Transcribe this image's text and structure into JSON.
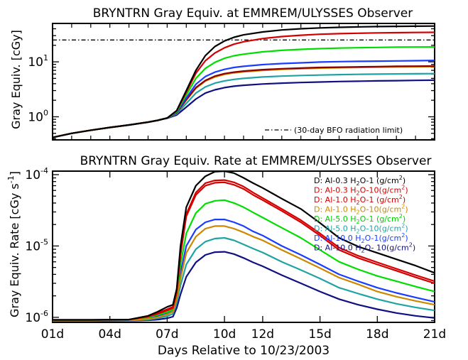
{
  "chart_data": [
    {
      "type": "line",
      "title": "BRYNTRN Gray Equiv. at EMMREM/ULYSSES Observer",
      "ylabel": "Gray Equiv. [cGy]",
      "yscale": "log",
      "ylim": [
        0.38,
        50
      ],
      "xlim": [
        1,
        21
      ],
      "yticks": [
        {
          "value": 1,
          "base": "10",
          "exp": "0"
        },
        {
          "value": 10,
          "base": "10",
          "exp": "1"
        }
      ],
      "reference_line": {
        "y": 25,
        "label": "(30-day BFO radiation limit)",
        "style": "dash-dot"
      },
      "x": [
        1,
        2,
        3,
        4,
        5,
        6,
        6.5,
        7,
        7.5,
        8,
        8.5,
        9,
        9.5,
        10,
        10.5,
        11,
        12,
        13,
        14,
        15,
        16,
        17,
        18,
        19,
        20,
        21
      ],
      "series": [
        {
          "color": "#000000",
          "values": [
            0.42,
            0.5,
            0.57,
            0.64,
            0.71,
            0.8,
            0.86,
            0.95,
            1.3,
            3.0,
            7.0,
            13.0,
            19.0,
            24.0,
            28.0,
            31.0,
            35.0,
            38.0,
            40.0,
            41.5,
            42.5,
            43.2,
            43.8,
            44.2,
            44.5,
            44.8
          ]
        },
        {
          "color": "#d40000",
          "values": [
            0.42,
            0.5,
            0.57,
            0.64,
            0.71,
            0.8,
            0.86,
            0.95,
            1.28,
            2.8,
            6.2,
            10.5,
            14.5,
            18.0,
            21.0,
            23.2,
            26.5,
            28.8,
            30.5,
            31.8,
            32.6,
            33.2,
            33.7,
            34.0,
            34.3,
            34.5
          ]
        },
        {
          "color": "#00dd00",
          "values": [
            0.42,
            0.5,
            0.57,
            0.64,
            0.71,
            0.8,
            0.86,
            0.95,
            1.24,
            2.5,
            5.0,
            7.6,
            9.8,
            11.6,
            12.9,
            13.8,
            15.2,
            16.2,
            16.9,
            17.4,
            17.8,
            18.1,
            18.3,
            18.5,
            18.6,
            18.7
          ]
        },
        {
          "color": "#1a3cff",
          "values": [
            0.42,
            0.5,
            0.57,
            0.64,
            0.71,
            0.8,
            0.86,
            0.95,
            1.2,
            2.2,
            3.9,
            5.4,
            6.5,
            7.3,
            7.9,
            8.3,
            8.9,
            9.3,
            9.6,
            9.9,
            10.1,
            10.2,
            10.3,
            10.4,
            10.5,
            10.6
          ]
        },
        {
          "color": "#8b0000",
          "values": [
            0.42,
            0.5,
            0.57,
            0.64,
            0.71,
            0.8,
            0.86,
            0.95,
            1.18,
            2.05,
            3.4,
            4.6,
            5.5,
            6.1,
            6.5,
            6.8,
            7.2,
            7.5,
            7.7,
            7.9,
            8.0,
            8.1,
            8.2,
            8.3,
            8.35,
            8.4
          ]
        },
        {
          "color": "#cc8800",
          "values": [
            0.42,
            0.5,
            0.57,
            0.64,
            0.71,
            0.8,
            0.86,
            0.95,
            1.17,
            2.0,
            3.3,
            4.45,
            5.3,
            5.9,
            6.3,
            6.6,
            7.0,
            7.3,
            7.5,
            7.7,
            7.8,
            7.9,
            8.0,
            8.1,
            8.15,
            8.2
          ]
        },
        {
          "color": "#1fa3a3",
          "values": [
            0.42,
            0.5,
            0.57,
            0.64,
            0.71,
            0.8,
            0.86,
            0.95,
            1.13,
            1.75,
            2.7,
            3.5,
            4.1,
            4.5,
            4.8,
            5.0,
            5.3,
            5.5,
            5.65,
            5.75,
            5.85,
            5.92,
            5.97,
            6.02,
            6.06,
            6.1
          ]
        },
        {
          "color": "#101080",
          "values": [
            0.42,
            0.5,
            0.57,
            0.64,
            0.71,
            0.8,
            0.86,
            0.94,
            1.08,
            1.5,
            2.1,
            2.7,
            3.1,
            3.4,
            3.6,
            3.75,
            3.95,
            4.1,
            4.2,
            4.3,
            4.38,
            4.44,
            4.5,
            4.55,
            4.6,
            4.64
          ]
        }
      ]
    },
    {
      "type": "line",
      "title": "BRYNTRN Gray Equiv. Rate at EMMREM/ULYSSES Observer",
      "ylabel": "Gray Equiv. Rate [cGy s",
      "ylabel_sup": "-1",
      "ylabel_end": "]",
      "xlabel": "Days Relative to 10/23/2003",
      "yscale": "log",
      "ylim": [
        8.5e-07,
        0.000112
      ],
      "xlim": [
        1,
        21
      ],
      "xticks": [
        {
          "value": 1,
          "label": "01d"
        },
        {
          "value": 4,
          "label": "04d"
        },
        {
          "value": 7,
          "label": "07d"
        },
        {
          "value": 10,
          "label": "10d"
        },
        {
          "value": 12,
          "label": "12d"
        },
        {
          "value": 15,
          "label": "15d"
        },
        {
          "value": 18,
          "label": "18d"
        },
        {
          "value": 21,
          "label": "21d"
        }
      ],
      "yticks": [
        {
          "value": 1e-06,
          "base": "10",
          "exp": "-6"
        },
        {
          "value": 1e-05,
          "base": "10",
          "exp": "-5"
        },
        {
          "value": 0.0001,
          "base": "10",
          "exp": "-4"
        }
      ],
      "legend_placement": "top-right",
      "x": [
        1,
        3,
        5,
        6,
        6.5,
        7,
        7.3,
        7.5,
        7.7,
        8,
        8.5,
        9,
        9.5,
        10,
        10.5,
        11,
        11.5,
        12,
        13,
        14,
        15,
        16,
        17,
        18,
        19,
        20,
        21
      ],
      "series": [
        {
          "name": "D: Al-0.3 H2O-1 (g/cm2)",
          "color": "#000000",
          "values": [
            9.2e-07,
            9.2e-07,
            9.3e-07,
            1.05e-06,
            1.2e-06,
            1.4e-06,
            1.5e-06,
            2.5e-06,
            1e-05,
            3.5e-05,
            7e-05,
            9.5e-05,
            0.00011,
            0.000112,
            0.000105,
            9e-05,
            7.6e-05,
            6.5e-05,
            4.6e-05,
            3.3e-05,
            2.1e-05,
            1.3e-05,
            9.8e-06,
            8e-06,
            6.5e-06,
            5.3e-06,
            4.2e-06
          ]
        },
        {
          "name": "D: Al-0.3 H2O-10(g/cm2)",
          "color": "#d40000",
          "values": [
            9.2e-07,
            9.2e-07,
            9.3e-07,
            1.03e-06,
            1.15e-06,
            1.3e-06,
            1.4e-06,
            2.3e-06,
            8e-06,
            2.8e-05,
            5.6e-05,
            7.6e-05,
            8.3e-05,
            8.4e-05,
            7.8e-05,
            6.8e-05,
            5.6e-05,
            4.7e-05,
            3.3e-05,
            2.3e-05,
            1.5e-05,
            9.5e-06,
            7.3e-06,
            5.9e-06,
            4.8e-06,
            3.9e-06,
            3.2e-06
          ]
        },
        {
          "name": "D: Al-1.0 H2O-1 (g/cm2)",
          "color": "#d40000",
          "values": [
            9.2e-07,
            9.2e-07,
            9.3e-07,
            1.02e-06,
            1.12e-06,
            1.25e-06,
            1.35e-06,
            2.2e-06,
            7.5e-06,
            2.6e-05,
            5.2e-05,
            7e-05,
            7.7e-05,
            7.8e-05,
            7.2e-05,
            6.3e-05,
            5.2e-05,
            4.4e-05,
            3.1e-05,
            2.15e-05,
            1.4e-05,
            8.8e-06,
            6.8e-06,
            5.5e-06,
            4.5e-06,
            3.65e-06,
            3e-06
          ]
        },
        {
          "name": "D: Al-1.0 H2O-10(g/cm2)",
          "color": "#cc8800",
          "values": [
            9e-07,
            9e-07,
            9.1e-07,
            9.5e-07,
            1e-06,
            1.1e-06,
            1.2e-06,
            1.8e-06,
            3.5e-06,
            8e-06,
            1.35e-05,
            1.75e-05,
            1.9e-05,
            1.9e-05,
            1.75e-05,
            1.55e-05,
            1.35e-05,
            1.2e-05,
            8.8e-06,
            6.6e-06,
            4.9e-06,
            3.6e-06,
            2.9e-06,
            2.3e-06,
            1.95e-06,
            1.7e-06,
            1.5e-06
          ]
        },
        {
          "name": "D: Al-5.0 H2O-1 (g/cm2)",
          "color": "#00dd00",
          "values": [
            9.1e-07,
            9.1e-07,
            9.2e-07,
            1e-06,
            1.08e-06,
            1.18e-06,
            1.28e-06,
            2e-06,
            5.5e-06,
            1.5e-05,
            2.9e-05,
            3.9e-05,
            4.3e-05,
            4.4e-05,
            4e-05,
            3.5e-05,
            2.95e-05,
            2.5e-05,
            1.8e-05,
            1.3e-05,
            8.8e-06,
            6e-06,
            4.7e-06,
            3.8e-06,
            3.2e-06,
            2.7e-06,
            2.3e-06
          ]
        },
        {
          "name": "D: Al-5.0 H2O-10(g/cm2)",
          "color": "#1fa3a3",
          "values": [
            9e-07,
            9e-07,
            9.05e-07,
            9.3e-07,
            9.7e-07,
            1.04e-06,
            1.12e-06,
            1.6e-06,
            2.8e-06,
            5.5e-06,
            9e-06,
            1.15e-05,
            1.27e-05,
            1.3e-05,
            1.2e-05,
            1.05e-05,
            9.2e-06,
            8.1e-06,
            6e-06,
            4.6e-06,
            3.5e-06,
            2.6e-06,
            2.15e-06,
            1.8e-06,
            1.55e-06,
            1.38e-06,
            1.25e-06
          ]
        },
        {
          "name": "D: Al-10.0 H2O-1(g/cm2)",
          "color": "#1a3cff",
          "values": [
            9.05e-07,
            9.05e-07,
            9.1e-07,
            9.8e-07,
            1.05e-06,
            1.14e-06,
            1.22e-06,
            1.85e-06,
            4.2e-06,
            1e-05,
            1.7e-05,
            2.15e-05,
            2.35e-05,
            2.35e-05,
            2.15e-05,
            1.9e-05,
            1.6e-05,
            1.4e-05,
            1e-05,
            7.5e-06,
            5.5e-06,
            4e-06,
            3.2e-06,
            2.6e-06,
            2.2e-06,
            1.9e-06,
            1.65e-06
          ]
        },
        {
          "name": "D: Al-10.0 H2O- 10(g/cm2)",
          "color": "#101080",
          "values": [
            8.9e-07,
            8.9e-07,
            8.95e-07,
            9.1e-07,
            9.3e-07,
            9.7e-07,
            1.02e-06,
            1.35e-06,
            2.1e-06,
            3.7e-06,
            5.9e-06,
            7.5e-06,
            8.2e-06,
            8.3e-06,
            7.7e-06,
            6.8e-06,
            5.9e-06,
            5.2e-06,
            3.9e-06,
            3e-06,
            2.3e-06,
            1.8e-06,
            1.5e-06,
            1.3e-06,
            1.15e-06,
            1.05e-06,
            9.8e-07
          ]
        }
      ],
      "legend": [
        {
          "pre": "D: Al-0.3 H",
          "sub": "2",
          "mid": "O-1 (g/cm",
          "sup": "2",
          "post": ")",
          "color": "#000000"
        },
        {
          "pre": "D: Al-0.3 H",
          "sub": "2",
          "mid": "O-10(g/cm",
          "sup": "2",
          "post": ")",
          "color": "#d40000"
        },
        {
          "pre": "D: Al-1.0 H",
          "sub": "2",
          "mid": "O-1 (g/cm",
          "sup": "2",
          "post": ")",
          "color": "#d40000"
        },
        {
          "pre": "D: Al-1.0 H",
          "sub": "2",
          "mid": "O-10(g/cm",
          "sup": "2",
          "post": ")",
          "color": "#cc8800"
        },
        {
          "pre": "D: Al-5.0 H",
          "sub": "2",
          "mid": "O-1 (g/cm",
          "sup": "2",
          "post": ")",
          "color": "#00cc00"
        },
        {
          "pre": "D: Al-5.0 H",
          "sub": "2",
          "mid": "O-10(g/cm",
          "sup": "2",
          "post": ")",
          "color": "#1fa3a3"
        },
        {
          "pre": "D: Al-10.0 H",
          "sub": "2",
          "mid": "O-1(g/cm",
          "sup": "2",
          "post": ")",
          "color": "#1a3cff"
        },
        {
          "pre": "D: Al-10.0 H",
          "sub": "2",
          "mid": "O- 10(g/cm",
          "sup": "2",
          "post": ")",
          "color": "#101080"
        }
      ]
    }
  ]
}
